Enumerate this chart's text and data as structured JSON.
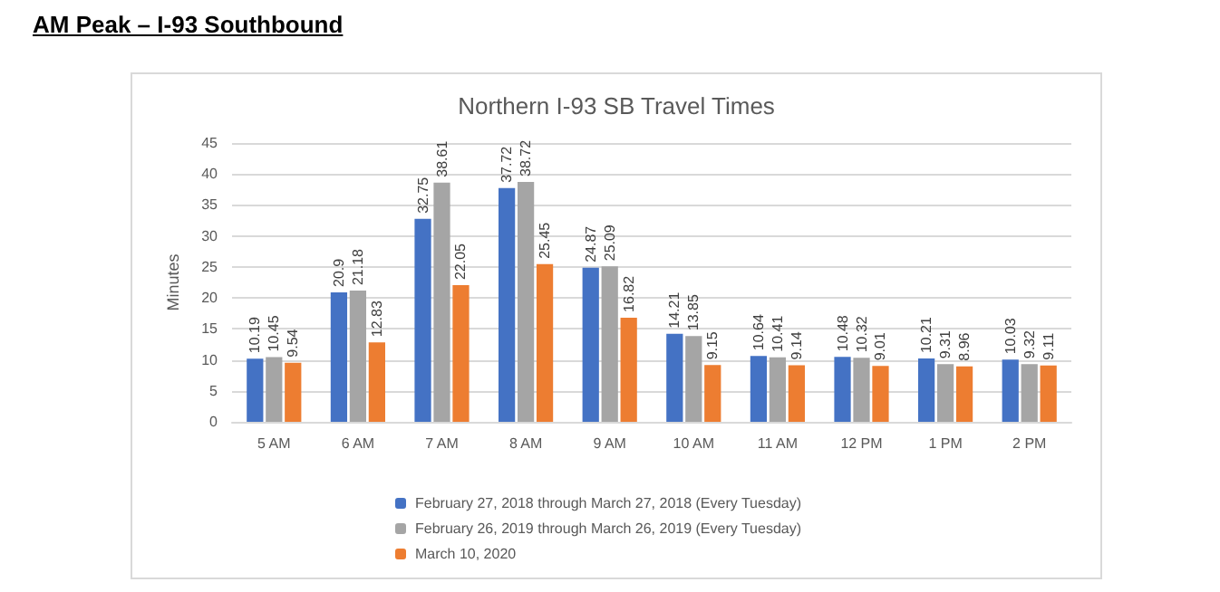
{
  "chart_data": {
    "type": "bar",
    "title": "AM Peak – I-93 Southbound",
    "subtitle": "Northern I-93 SB Travel Times",
    "ylabel": "Minutes",
    "categories": [
      "5 AM",
      "6 AM",
      "7 AM",
      "8 AM",
      "9 AM",
      "10 AM",
      "11 AM",
      "12 PM",
      "1 PM",
      "2 PM"
    ],
    "series": [
      {
        "name": "February 27, 2018 through March 27, 2018 (Every Tuesday)",
        "color": "#4472c4",
        "values": [
          10.19,
          20.9,
          32.75,
          37.72,
          24.87,
          14.21,
          10.64,
          10.48,
          10.21,
          10.03
        ]
      },
      {
        "name": "February 26, 2019 through March 26, 2019 (Every Tuesday)",
        "color": "#a5a5a5",
        "values": [
          10.45,
          21.18,
          38.61,
          38.72,
          25.09,
          13.85,
          10.41,
          10.32,
          9.31,
          9.32
        ]
      },
      {
        "name": "March 10, 2020",
        "color": "#ed7d31",
        "values": [
          9.54,
          12.83,
          22.05,
          25.45,
          16.82,
          9.15,
          9.14,
          9.01,
          8.96,
          9.11
        ]
      }
    ],
    "ylim": [
      0,
      45
    ],
    "yticks": [
      0,
      5,
      10,
      15,
      20,
      25,
      30,
      35,
      40,
      45
    ],
    "grid": "y",
    "legend": "bottom",
    "data_labels": true
  }
}
